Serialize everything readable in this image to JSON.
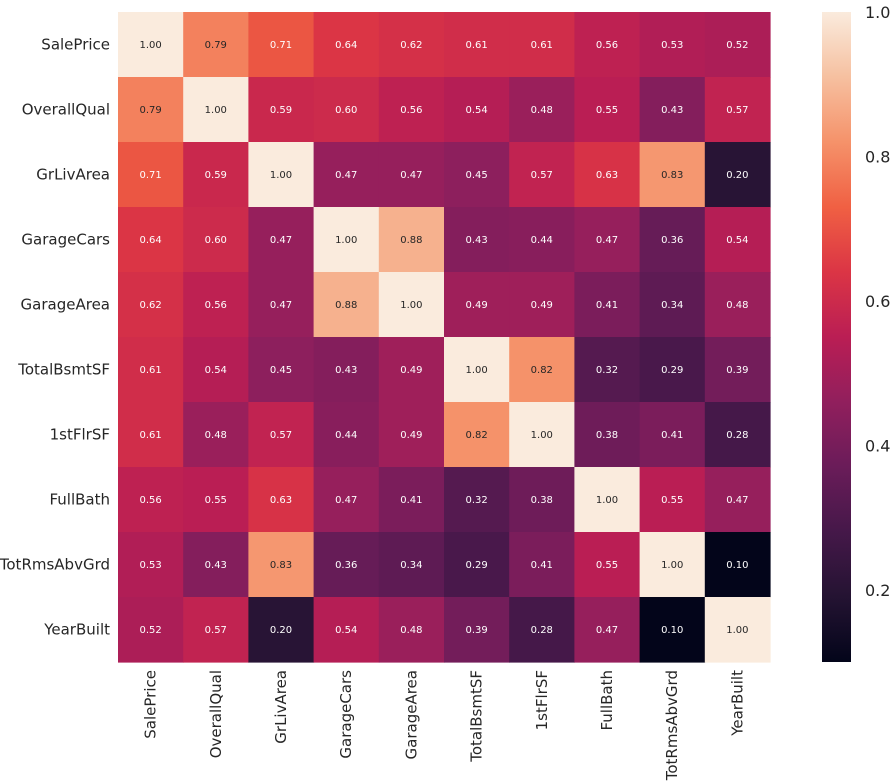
{
  "chart_data": {
    "type": "heatmap",
    "title": "",
    "xlabel": "",
    "ylabel": "",
    "rows": [
      "SalePrice",
      "OverallQual",
      "GrLivArea",
      "GarageCars",
      "GarageArea",
      "TotalBsmtSF",
      "1stFlrSF",
      "FullBath",
      "TotRmsAbvGrd",
      "YearBuilt"
    ],
    "columns": [
      "SalePrice",
      "OverallQual",
      "GrLivArea",
      "GarageCars",
      "GarageArea",
      "TotalBsmtSF",
      "1stFlrSF",
      "FullBath",
      "TotRmsAbvGrd",
      "YearBuilt"
    ],
    "values": [
      [
        1.0,
        0.79,
        0.71,
        0.64,
        0.62,
        0.61,
        0.61,
        0.56,
        0.53,
        0.52
      ],
      [
        0.79,
        1.0,
        0.59,
        0.6,
        0.56,
        0.54,
        0.48,
        0.55,
        0.43,
        0.57
      ],
      [
        0.71,
        0.59,
        1.0,
        0.47,
        0.47,
        0.45,
        0.57,
        0.63,
        0.83,
        0.2
      ],
      [
        0.64,
        0.6,
        0.47,
        1.0,
        0.88,
        0.43,
        0.44,
        0.47,
        0.36,
        0.54
      ],
      [
        0.62,
        0.56,
        0.47,
        0.88,
        1.0,
        0.49,
        0.49,
        0.41,
        0.34,
        0.48
      ],
      [
        0.61,
        0.54,
        0.45,
        0.43,
        0.49,
        1.0,
        0.82,
        0.32,
        0.29,
        0.39
      ],
      [
        0.61,
        0.48,
        0.57,
        0.44,
        0.49,
        0.82,
        1.0,
        0.38,
        0.41,
        0.28
      ],
      [
        0.56,
        0.55,
        0.63,
        0.47,
        0.41,
        0.32,
        0.38,
        1.0,
        0.55,
        0.47
      ],
      [
        0.53,
        0.43,
        0.83,
        0.36,
        0.34,
        0.29,
        0.41,
        0.55,
        1.0,
        0.1
      ],
      [
        0.52,
        0.57,
        0.2,
        0.54,
        0.48,
        0.39,
        0.28,
        0.47,
        0.1,
        1.0
      ]
    ],
    "value_format": "2 decimals",
    "colormap": "rocket",
    "color_range": [
      0.1,
      1.0
    ],
    "colorbar_ticks": [
      "0.2",
      "0.4",
      "0.6",
      "0.8",
      "1.0"
    ],
    "grid": false,
    "legend": "colorbar-right"
  }
}
